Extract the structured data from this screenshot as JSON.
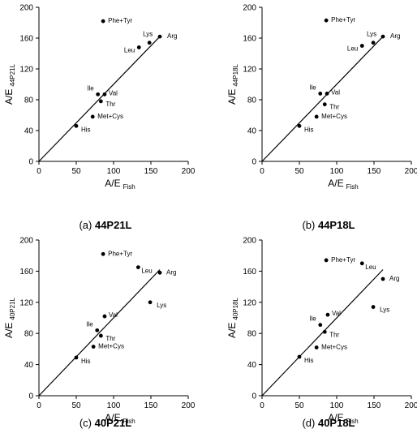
{
  "chart_data": [
    {
      "type": "scatter",
      "caption_prefix": "(a) ",
      "caption_name": "44P21L",
      "xlabel": "A/E",
      "xlabel_sub": "Fish",
      "ylabel": "A/E",
      "ylabel_sub": "44P21L",
      "xlim": [
        0,
        200
      ],
      "ylim": [
        0,
        200
      ],
      "xticks": [
        "0",
        "50",
        "100",
        "150",
        "200"
      ],
      "yticks": [
        "0",
        "40",
        "80",
        "120",
        "160",
        "200"
      ],
      "fit_line": {
        "x": [
          0,
          162
        ],
        "y": [
          0,
          162
        ]
      },
      "points": [
        {
          "label": "His",
          "x": 50,
          "y": 46
        },
        {
          "label": "Met+Cys",
          "x": 72,
          "y": 58
        },
        {
          "label": "Thr",
          "x": 83,
          "y": 78
        },
        {
          "label": "Ile",
          "x": 79,
          "y": 87
        },
        {
          "label": "Val",
          "x": 88,
          "y": 87
        },
        {
          "label": "Leu",
          "x": 134,
          "y": 148
        },
        {
          "label": "Lys",
          "x": 148,
          "y": 154
        },
        {
          "label": "Arg",
          "x": 162,
          "y": 162
        },
        {
          "label": "Phe+Tyr",
          "x": 86,
          "y": 182
        }
      ]
    },
    {
      "type": "scatter",
      "caption_prefix": "(b) ",
      "caption_name": "44P18L",
      "xlabel": "A/E",
      "xlabel_sub": "Fish",
      "ylabel": "A/E",
      "ylabel_sub": "44P18L",
      "xlim": [
        0,
        200
      ],
      "ylim": [
        0,
        200
      ],
      "xticks": [
        "0",
        "50",
        "100",
        "150",
        "200"
      ],
      "yticks": [
        "0",
        "40",
        "80",
        "120",
        "160",
        "200"
      ],
      "fit_line": {
        "x": [
          0,
          162
        ],
        "y": [
          0,
          162
        ]
      },
      "points": [
        {
          "label": "His",
          "x": 50,
          "y": 46
        },
        {
          "label": "Met+Cys",
          "x": 73,
          "y": 58
        },
        {
          "label": "Thr",
          "x": 84,
          "y": 74
        },
        {
          "label": "Ile",
          "x": 78,
          "y": 88
        },
        {
          "label": "Val",
          "x": 87,
          "y": 88
        },
        {
          "label": "Leu",
          "x": 134,
          "y": 150
        },
        {
          "label": "Lys",
          "x": 149,
          "y": 154
        },
        {
          "label": "Arg",
          "x": 162,
          "y": 162
        },
        {
          "label": "Phe+Tyr",
          "x": 86,
          "y": 183
        }
      ]
    },
    {
      "type": "scatter",
      "caption_prefix": "(c) ",
      "caption_name": "40P21L",
      "xlabel": "A/E",
      "xlabel_sub": "Fish",
      "ylabel": "A/E",
      "ylabel_sub": "40P21L",
      "xlim": [
        0,
        200
      ],
      "ylim": [
        0,
        200
      ],
      "xticks": [
        "0",
        "50",
        "100",
        "150",
        "200"
      ],
      "yticks": [
        "0",
        "40",
        "80",
        "120",
        "160",
        "200"
      ],
      "fit_line": {
        "x": [
          0,
          162
        ],
        "y": [
          0,
          162
        ]
      },
      "points": [
        {
          "label": "His",
          "x": 50,
          "y": 49
        },
        {
          "label": "Met+Cys",
          "x": 73,
          "y": 63
        },
        {
          "label": "Thr",
          "x": 83,
          "y": 77
        },
        {
          "label": "Ile",
          "x": 78,
          "y": 84
        },
        {
          "label": "Val",
          "x": 88,
          "y": 102
        },
        {
          "label": "Lys",
          "x": 149,
          "y": 120
        },
        {
          "label": "Arg",
          "x": 162,
          "y": 158
        },
        {
          "label": "Leu",
          "x": 133,
          "y": 165
        },
        {
          "label": "Phe+Tyr",
          "x": 86,
          "y": 182
        }
      ]
    },
    {
      "type": "scatter",
      "caption_prefix": "(d) ",
      "caption_name": "40P18L",
      "xlabel": "A/E",
      "xlabel_sub": "Fish",
      "ylabel": "A/E",
      "ylabel_sub": "40P18L",
      "xlim": [
        0,
        200
      ],
      "ylim": [
        0,
        200
      ],
      "xticks": [
        "0",
        "50",
        "100",
        "150",
        "200"
      ],
      "yticks": [
        "0",
        "40",
        "80",
        "120",
        "160",
        "200"
      ],
      "fit_line": {
        "x": [
          0,
          162
        ],
        "y": [
          0,
          162
        ]
      },
      "points": [
        {
          "label": "His",
          "x": 50,
          "y": 50
        },
        {
          "label": "Met+Cys",
          "x": 73,
          "y": 62
        },
        {
          "label": "Thr",
          "x": 84,
          "y": 82
        },
        {
          "label": "Ile",
          "x": 78,
          "y": 91
        },
        {
          "label": "Val",
          "x": 88,
          "y": 104
        },
        {
          "label": "Lys",
          "x": 149,
          "y": 114
        },
        {
          "label": "Arg",
          "x": 162,
          "y": 150
        },
        {
          "label": "Leu",
          "x": 134,
          "y": 170
        },
        {
          "label": "Phe+Tyr",
          "x": 86,
          "y": 174
        }
      ]
    }
  ]
}
